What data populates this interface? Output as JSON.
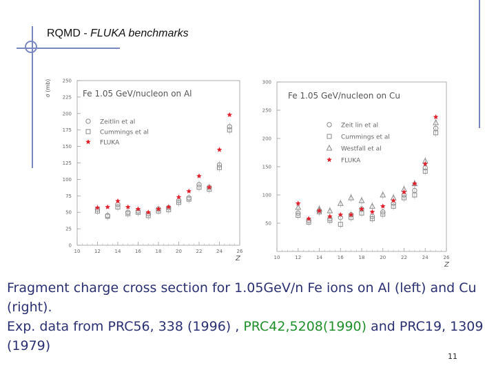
{
  "slide": {
    "title_main": "RQMD - ",
    "title_italic": "FLUKA benchmarks",
    "caption_line1": "Fragment charge cross section for 1.05GeV/n Fe ions on Al (left) and Cu (right).",
    "caption_line2_pre": "Exp. data from PRC56, 338 (1996) , ",
    "caption_line2_green": "PRC42,5208(1990)",
    "caption_line2_post": " and PRC19, 1309 (1979)",
    "page_number": "11"
  },
  "colors": {
    "accent": "#7a86c0",
    "fluka": "#e0202a",
    "data_marker": "#8a8a8a",
    "green_text": "#1f8f2a",
    "caption_text": "#2a2f72"
  },
  "chart_data": [
    {
      "type": "scatter",
      "title": "Fe 1.05 GeV/nucleon  on Al",
      "ylabel": "σ (mb)",
      "xlabel": "Z",
      "xlim": [
        10,
        26
      ],
      "ylim": [
        0,
        250
      ],
      "xticks": [
        "10",
        "12",
        "14",
        "16",
        "18",
        "20",
        "22",
        "24",
        "26"
      ],
      "yticks": [
        "0",
        "25",
        "50",
        "75",
        "100",
        "125",
        "150",
        "175",
        "200",
        "225",
        "250"
      ],
      "legend": [
        {
          "label": "Zeitlin et al",
          "marker": "circle"
        },
        {
          "label": "Cummings et al",
          "marker": "square"
        },
        {
          "label": "FLUKA",
          "marker": "star"
        }
      ],
      "series": [
        {
          "name": "Zeitlin et al",
          "marker": "circle",
          "x": [
            12,
            13,
            14,
            15,
            16,
            17,
            18,
            19,
            20,
            21,
            22,
            23,
            24,
            25
          ],
          "y": [
            55,
            45,
            62,
            50,
            52,
            48,
            55,
            57,
            68,
            72,
            92,
            88,
            122,
            180
          ]
        },
        {
          "name": "Cummings et al",
          "marker": "square",
          "x": [
            12,
            13,
            14,
            15,
            16,
            17,
            18,
            19,
            20,
            21,
            22,
            23,
            24,
            25
          ],
          "y": [
            52,
            44,
            58,
            48,
            50,
            45,
            52,
            54,
            65,
            70,
            88,
            85,
            118,
            175
          ]
        },
        {
          "name": "FLUKA",
          "marker": "star",
          "x": [
            12,
            13,
            14,
            15,
            16,
            17,
            18,
            19,
            20,
            21,
            22,
            23,
            24,
            25
          ],
          "y": [
            57,
            58,
            67,
            58,
            55,
            50,
            55,
            58,
            73,
            82,
            105,
            88,
            145,
            198
          ]
        }
      ]
    },
    {
      "type": "scatter",
      "title": "Fe 1.05 GeV/nucleon  on Cu",
      "ylabel": "",
      "xlabel": "Z",
      "xlim": [
        10,
        26
      ],
      "ylim": [
        0,
        300
      ],
      "xticks": [
        "10",
        "12",
        "14",
        "16",
        "18",
        "20",
        "22",
        "24",
        "26"
      ],
      "yticks": [
        "50",
        "100",
        "150",
        "200",
        "250",
        "300"
      ],
      "legend": [
        {
          "label": "Zeit lin et al",
          "marker": "circle"
        },
        {
          "label": "Cummings et al",
          "marker": "square"
        },
        {
          "label": "Westfall et al",
          "marker": "triangle"
        },
        {
          "label": "FLUKA",
          "marker": "star"
        }
      ],
      "series": [
        {
          "name": "Zeit lin et al",
          "marker": "circle",
          "x": [
            12,
            13,
            14,
            15,
            16,
            17,
            18,
            19,
            20,
            21,
            22,
            23,
            24,
            25
          ],
          "y": [
            68,
            55,
            72,
            58,
            60,
            65,
            75,
            62,
            70,
            85,
            100,
            108,
            148,
            218
          ]
        },
        {
          "name": "Cummings et al",
          "marker": "square",
          "x": [
            12,
            13,
            14,
            15,
            16,
            17,
            18,
            19,
            20,
            21,
            22,
            23,
            24,
            25
          ],
          "y": [
            64,
            52,
            70,
            55,
            48,
            60,
            68,
            58,
            66,
            80,
            95,
            100,
            142,
            210
          ]
        },
        {
          "name": "Westfall et al",
          "marker": "triangle",
          "x": [
            12,
            14,
            15,
            16,
            17,
            18,
            19,
            20,
            21,
            22,
            23,
            24,
            25
          ],
          "y": [
            78,
            75,
            72,
            85,
            95,
            90,
            80,
            100,
            95,
            110,
            120,
            160,
            228
          ]
        },
        {
          "name": "FLUKA",
          "marker": "star",
          "x": [
            12,
            13,
            14,
            15,
            16,
            17,
            18,
            19,
            20,
            21,
            22,
            23,
            24,
            25
          ],
          "y": [
            85,
            58,
            72,
            62,
            65,
            65,
            75,
            70,
            80,
            90,
            105,
            120,
            155,
            238
          ]
        }
      ]
    }
  ]
}
